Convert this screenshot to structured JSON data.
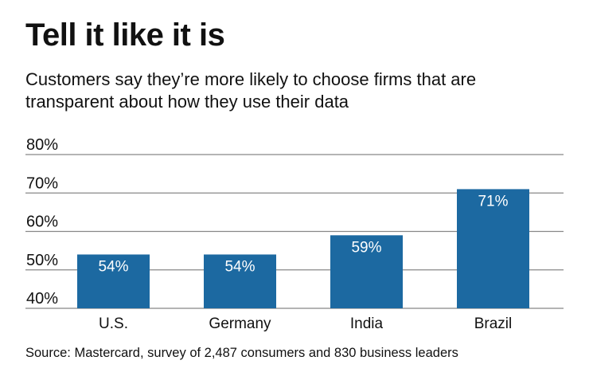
{
  "title": "Tell it like it is",
  "subtitle": "Customers say they’re more likely to choose firms that are transparent about how they use their data",
  "source": "Source: Mastercard, survey of 2,487 consumers and 830 business leaders",
  "colors": {
    "bar": "#1c69a1",
    "grid": "#888888"
  },
  "chart_data": {
    "type": "bar",
    "title": "Tell it like it is",
    "categories": [
      "U.S.",
      "Germany",
      "India",
      "Brazil"
    ],
    "values": [
      54,
      54,
      59,
      71
    ],
    "data_labels": [
      "54%",
      "54%",
      "59%",
      "71%"
    ],
    "yticks": [
      40,
      50,
      60,
      70,
      80
    ],
    "ytick_labels": [
      "40%",
      "50%",
      "60%",
      "70%",
      "80%"
    ],
    "ylim": [
      40,
      80
    ],
    "xlabel": "",
    "ylabel": "",
    "grid": true
  }
}
